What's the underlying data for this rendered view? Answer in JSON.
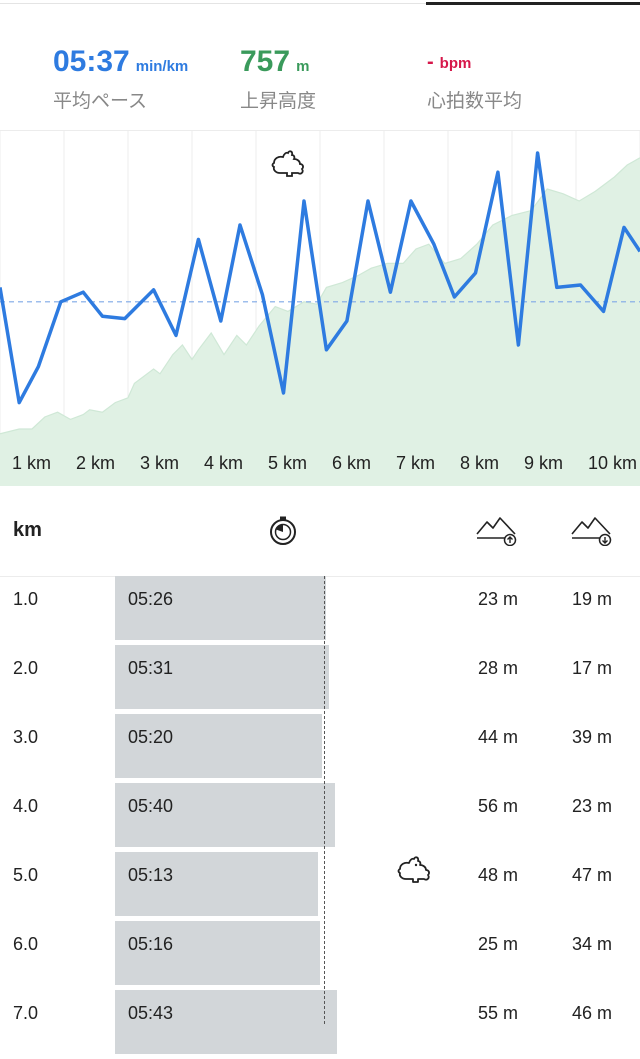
{
  "summary": {
    "pace": {
      "value": "05:37",
      "unit": "min/km",
      "label": "平均ペース",
      "color": "#2e7be0"
    },
    "ascent": {
      "value": "757",
      "unit": "m",
      "label": "上昇高度",
      "color": "#3a9a5b"
    },
    "heart_rate": {
      "value": "-",
      "unit": "bpm",
      "label": "心拍数平均",
      "color": "#d6174a"
    }
  },
  "chart_data": {
    "type": "line",
    "x_ticks": [
      "1 km",
      "2 km",
      "3 km",
      "4 km",
      "5 km",
      "6 km",
      "7 km",
      "8 km",
      "9 km",
      "10 km"
    ],
    "xlim": [
      0.5,
      10.5
    ],
    "series": [
      {
        "kind": "pace",
        "color": "#2e7be0",
        "x": [
          0.5,
          0.8,
          1.1,
          1.45,
          1.8,
          2.1,
          2.45,
          2.9,
          3.25,
          3.6,
          3.95,
          4.25,
          4.6,
          4.93,
          5.25,
          5.6,
          5.92,
          6.25,
          6.6,
          6.92,
          7.28,
          7.6,
          7.93,
          8.28,
          8.6,
          8.9,
          9.2,
          9.57,
          9.93,
          10.25,
          10.5
        ],
        "y": [
          0.64,
          0.16,
          0.31,
          0.58,
          0.62,
          0.52,
          0.51,
          0.63,
          0.44,
          0.84,
          0.5,
          0.9,
          0.61,
          0.2,
          1.0,
          0.38,
          0.5,
          1.0,
          0.62,
          1.0,
          0.82,
          0.6,
          0.7,
          1.12,
          0.4,
          1.2,
          0.64,
          0.65,
          0.54,
          0.89,
          0.79
        ]
      },
      {
        "kind": "elevation",
        "color": "#dff0e3",
        "x": [
          0.5,
          0.8,
          1.0,
          1.2,
          1.4,
          1.6,
          1.8,
          1.9,
          2.1,
          2.3,
          2.5,
          2.6,
          2.9,
          3.0,
          3.2,
          3.35,
          3.5,
          3.6,
          3.8,
          4.0,
          4.2,
          4.35,
          4.55,
          4.8,
          5.0,
          5.25,
          5.45,
          5.6,
          5.85,
          6.1,
          6.3,
          6.55,
          6.8,
          7.0,
          7.2,
          7.45,
          7.7,
          7.95,
          8.2,
          8.5,
          8.8,
          9.05,
          9.3,
          9.55,
          9.8,
          10.1,
          10.3,
          10.5
        ],
        "y": [
          0.03,
          0.05,
          0.05,
          0.1,
          0.12,
          0.09,
          0.11,
          0.13,
          0.12,
          0.16,
          0.18,
          0.24,
          0.3,
          0.28,
          0.36,
          0.4,
          0.34,
          0.38,
          0.45,
          0.36,
          0.44,
          0.4,
          0.48,
          0.56,
          0.54,
          0.58,
          0.57,
          0.64,
          0.66,
          0.69,
          0.72,
          0.74,
          0.74,
          0.8,
          0.82,
          0.74,
          0.76,
          0.82,
          0.9,
          0.94,
          0.96,
          1.05,
          1.03,
          1.0,
          1.04,
          1.1,
          1.15,
          1.18
        ]
      }
    ],
    "average_pace_line": 0.58
  },
  "table": {
    "header": {
      "km": "km",
      "time_icon": "stopwatch-icon",
      "ascent_icon": "ascent-icon",
      "descent_icon": "descent-icon"
    },
    "rows": [
      {
        "km": "1.0",
        "time": "05:26",
        "ascent": "23 m",
        "descent": "19 m",
        "pace_sec": 326
      },
      {
        "km": "2.0",
        "time": "05:31",
        "ascent": "28 m",
        "descent": "17 m",
        "pace_sec": 331
      },
      {
        "km": "3.0",
        "time": "05:20",
        "ascent": "44 m",
        "descent": "39 m",
        "pace_sec": 320
      },
      {
        "km": "4.0",
        "time": "05:40",
        "ascent": "56 m",
        "descent": "23 m",
        "pace_sec": 340
      },
      {
        "km": "5.0",
        "time": "05:13",
        "ascent": "48 m",
        "descent": "47 m",
        "pace_sec": 313
      },
      {
        "km": "6.0",
        "time": "05:16",
        "ascent": "25 m",
        "descent": "34 m",
        "pace_sec": 316
      },
      {
        "km": "7.0",
        "time": "05:43",
        "ascent": "55 m",
        "descent": "46 m",
        "pace_sec": 343
      }
    ]
  }
}
